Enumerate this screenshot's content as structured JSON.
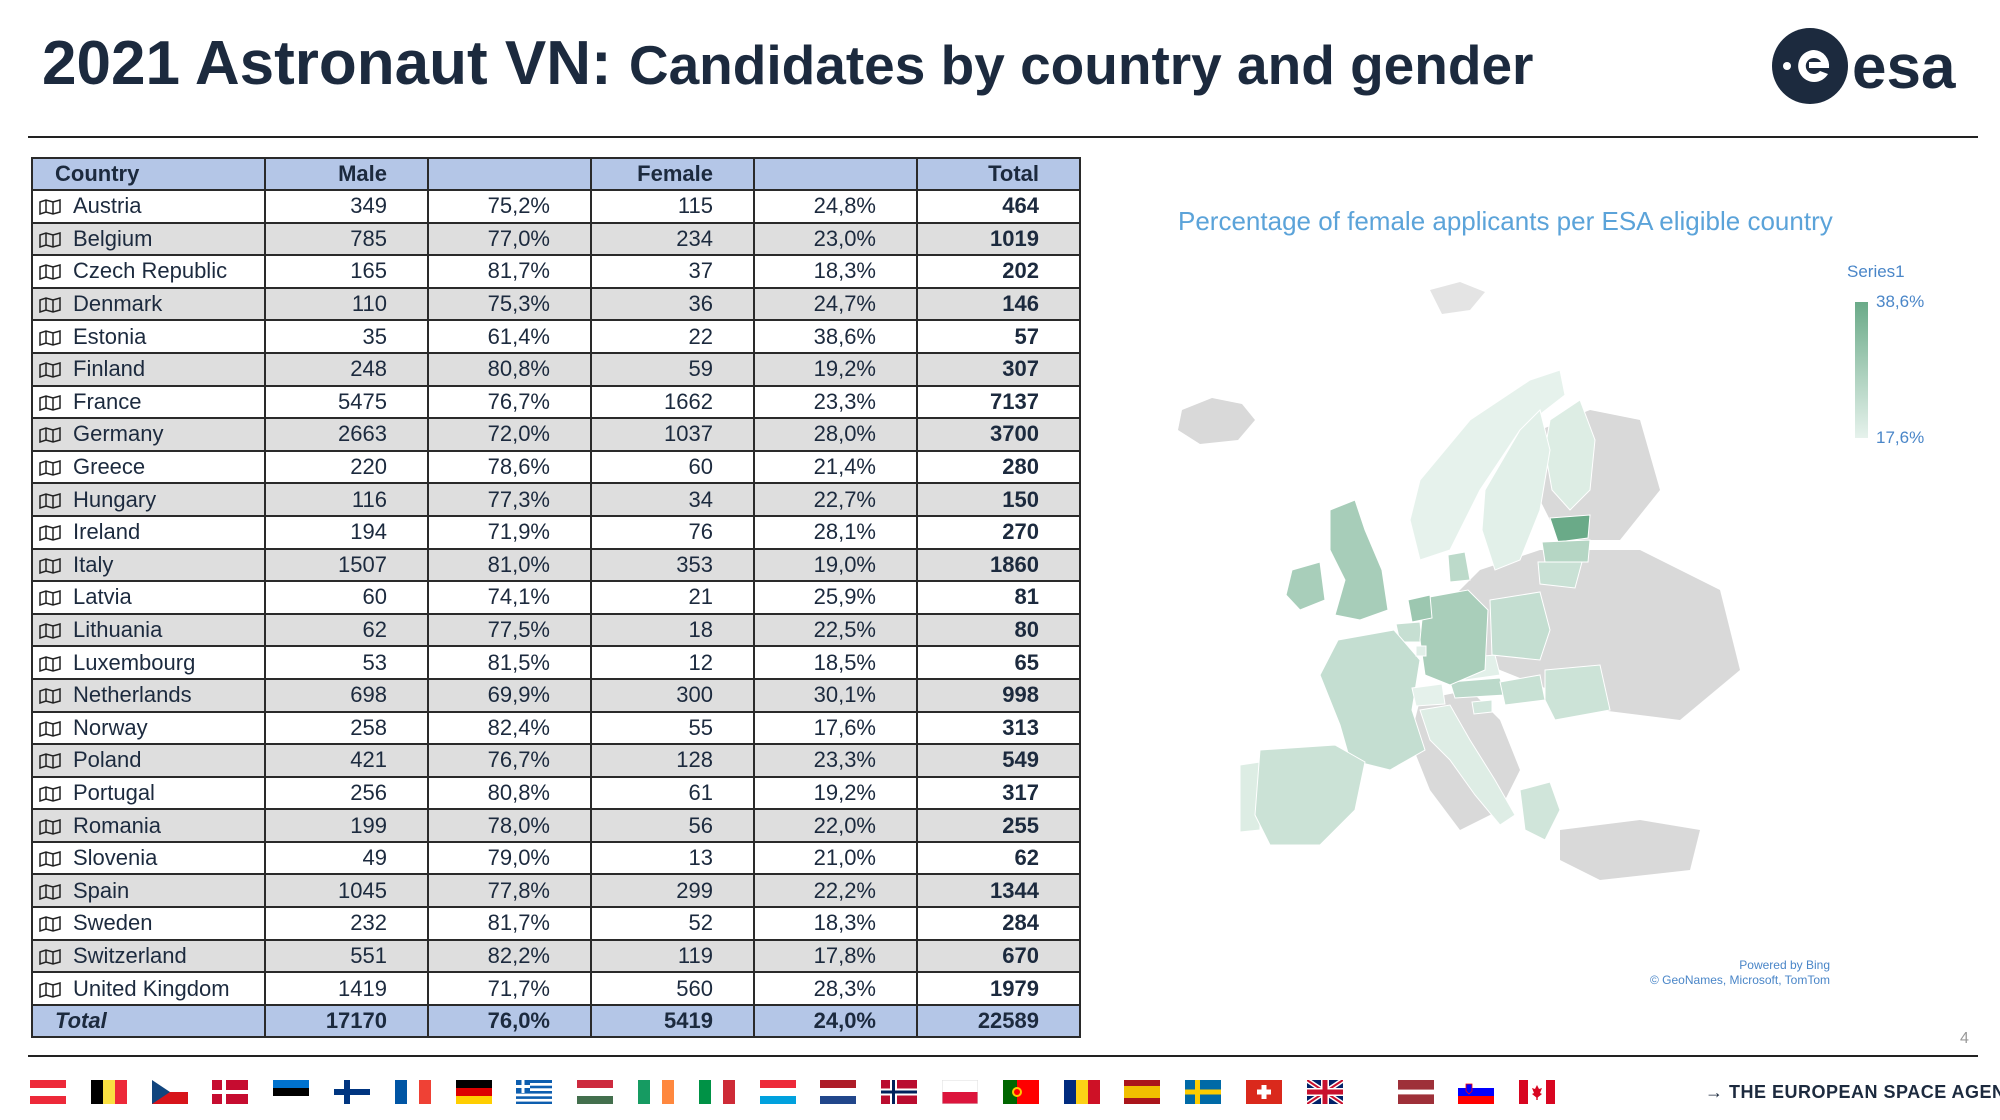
{
  "header": {
    "title_main": "2021 Astronaut VN:",
    "title_sub": "Candidates by country and gender",
    "logo_text": "esa"
  },
  "table": {
    "headers": {
      "country": "Country",
      "male": "Male",
      "male_pct": "",
      "female": "Female",
      "female_pct": "",
      "total": "Total"
    },
    "rows": [
      {
        "country": "Austria",
        "male": "349",
        "male_pct": "75,2%",
        "female": "115",
        "female_pct": "24,8%",
        "total": "464"
      },
      {
        "country": "Belgium",
        "male": "785",
        "male_pct": "77,0%",
        "female": "234",
        "female_pct": "23,0%",
        "total": "1019"
      },
      {
        "country": "Czech Republic",
        "male": "165",
        "male_pct": "81,7%",
        "female": "37",
        "female_pct": "18,3%",
        "total": "202"
      },
      {
        "country": "Denmark",
        "male": "110",
        "male_pct": "75,3%",
        "female": "36",
        "female_pct": "24,7%",
        "total": "146"
      },
      {
        "country": "Estonia",
        "male": "35",
        "male_pct": "61,4%",
        "female": "22",
        "female_pct": "38,6%",
        "total": "57"
      },
      {
        "country": "Finland",
        "male": "248",
        "male_pct": "80,8%",
        "female": "59",
        "female_pct": "19,2%",
        "total": "307"
      },
      {
        "country": "France",
        "male": "5475",
        "male_pct": "76,7%",
        "female": "1662",
        "female_pct": "23,3%",
        "total": "7137"
      },
      {
        "country": "Germany",
        "male": "2663",
        "male_pct": "72,0%",
        "female": "1037",
        "female_pct": "28,0%",
        "total": "3700"
      },
      {
        "country": "Greece",
        "male": "220",
        "male_pct": "78,6%",
        "female": "60",
        "female_pct": "21,4%",
        "total": "280"
      },
      {
        "country": "Hungary",
        "male": "116",
        "male_pct": "77,3%",
        "female": "34",
        "female_pct": "22,7%",
        "total": "150"
      },
      {
        "country": "Ireland",
        "male": "194",
        "male_pct": "71,9%",
        "female": "76",
        "female_pct": "28,1%",
        "total": "270"
      },
      {
        "country": "Italy",
        "male": "1507",
        "male_pct": "81,0%",
        "female": "353",
        "female_pct": "19,0%",
        "total": "1860"
      },
      {
        "country": "Latvia",
        "male": "60",
        "male_pct": "74,1%",
        "female": "21",
        "female_pct": "25,9%",
        "total": "81"
      },
      {
        "country": "Lithuania",
        "male": "62",
        "male_pct": "77,5%",
        "female": "18",
        "female_pct": "22,5%",
        "total": "80"
      },
      {
        "country": "Luxembourg",
        "male": "53",
        "male_pct": "81,5%",
        "female": "12",
        "female_pct": "18,5%",
        "total": "65"
      },
      {
        "country": "Netherlands",
        "male": "698",
        "male_pct": "69,9%",
        "female": "300",
        "female_pct": "30,1%",
        "total": "998"
      },
      {
        "country": "Norway",
        "male": "258",
        "male_pct": "82,4%",
        "female": "55",
        "female_pct": "17,6%",
        "total": "313"
      },
      {
        "country": "Poland",
        "male": "421",
        "male_pct": "76,7%",
        "female": "128",
        "female_pct": "23,3%",
        "total": "549"
      },
      {
        "country": "Portugal",
        "male": "256",
        "male_pct": "80,8%",
        "female": "61",
        "female_pct": "19,2%",
        "total": "317"
      },
      {
        "country": "Romania",
        "male": "199",
        "male_pct": "78,0%",
        "female": "56",
        "female_pct": "22,0%",
        "total": "255"
      },
      {
        "country": "Slovenia",
        "male": "49",
        "male_pct": "79,0%",
        "female": "13",
        "female_pct": "21,0%",
        "total": "62"
      },
      {
        "country": "Spain",
        "male": "1045",
        "male_pct": "77,8%",
        "female": "299",
        "female_pct": "22,2%",
        "total": "1344"
      },
      {
        "country": "Sweden",
        "male": "232",
        "male_pct": "81,7%",
        "female": "52",
        "female_pct": "18,3%",
        "total": "284"
      },
      {
        "country": "Switzerland",
        "male": "551",
        "male_pct": "82,2%",
        "female": "119",
        "female_pct": "17,8%",
        "total": "670"
      },
      {
        "country": "United Kingdom",
        "male": "1419",
        "male_pct": "71,7%",
        "female": "560",
        "female_pct": "28,3%",
        "total": "1979"
      }
    ],
    "footer": {
      "label": "Total",
      "male": "17170",
      "male_pct": "76,0%",
      "female": "5419",
      "female_pct": "24,0%",
      "total": "22589"
    }
  },
  "chart_data": {
    "type": "table",
    "title": "Percentage of female applicants per ESA eligible country",
    "legend": {
      "series_name": "Series1",
      "max_label": "38,6%",
      "min_label": "17,6%",
      "placement": "top-right"
    },
    "colors": {
      "max": "#6aaa88",
      "min": "#e6f2ec",
      "no_data": "#d9d9d9"
    },
    "regions": [
      {
        "country": "Austria",
        "female_pct": 24.8
      },
      {
        "country": "Belgium",
        "female_pct": 23.0
      },
      {
        "country": "Czech Republic",
        "female_pct": 18.3
      },
      {
        "country": "Denmark",
        "female_pct": 24.7
      },
      {
        "country": "Estonia",
        "female_pct": 38.6
      },
      {
        "country": "Finland",
        "female_pct": 19.2
      },
      {
        "country": "France",
        "female_pct": 23.3
      },
      {
        "country": "Germany",
        "female_pct": 28.0
      },
      {
        "country": "Greece",
        "female_pct": 21.4
      },
      {
        "country": "Hungary",
        "female_pct": 22.7
      },
      {
        "country": "Ireland",
        "female_pct": 28.1
      },
      {
        "country": "Italy",
        "female_pct": 19.0
      },
      {
        "country": "Latvia",
        "female_pct": 25.9
      },
      {
        "country": "Lithuania",
        "female_pct": 22.5
      },
      {
        "country": "Luxembourg",
        "female_pct": 18.5
      },
      {
        "country": "Netherlands",
        "female_pct": 30.1
      },
      {
        "country": "Norway",
        "female_pct": 17.6
      },
      {
        "country": "Poland",
        "female_pct": 23.3
      },
      {
        "country": "Portugal",
        "female_pct": 19.2
      },
      {
        "country": "Romania",
        "female_pct": 22.0
      },
      {
        "country": "Slovenia",
        "female_pct": 21.0
      },
      {
        "country": "Spain",
        "female_pct": 22.2
      },
      {
        "country": "Sweden",
        "female_pct": 18.3
      },
      {
        "country": "Switzerland",
        "female_pct": 17.8
      },
      {
        "country": "United Kingdom",
        "female_pct": 28.3
      }
    ]
  },
  "map": {
    "credit_line1": "Powered by Bing",
    "credit_line2": "© GeoNames, Microsoft, TomTom"
  },
  "footer": {
    "page_number": "4",
    "agency": "→ THE EUROPEAN SPACE AGENCY",
    "flags": [
      "Austria",
      "Belgium",
      "Czech Republic",
      "Denmark",
      "Estonia",
      "Finland",
      "France",
      "Germany",
      "Greece",
      "Hungary",
      "Ireland",
      "Italy",
      "Luxembourg",
      "Netherlands",
      "Norway",
      "Poland",
      "Portugal",
      "Romania",
      "Spain",
      "Sweden",
      "Switzerland",
      "United Kingdom",
      "Latvia",
      "Slovenia",
      "Canada"
    ]
  }
}
